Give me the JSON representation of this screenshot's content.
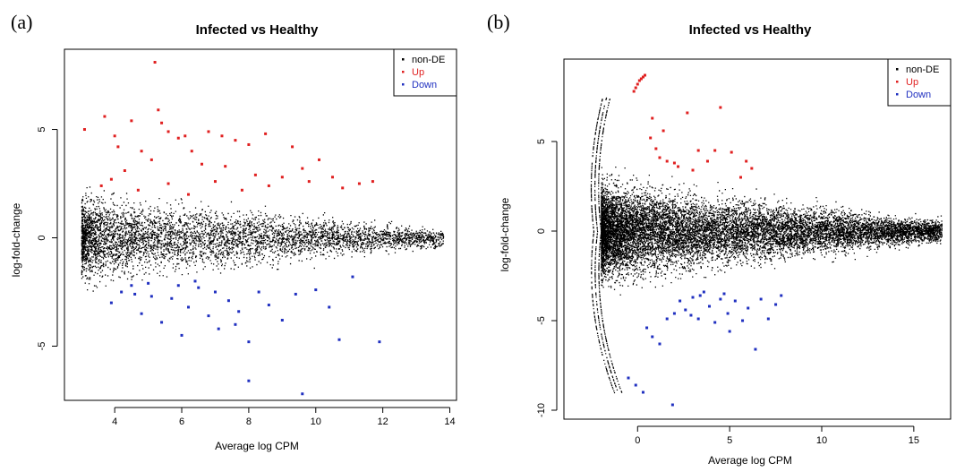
{
  "chart_data": [
    {
      "panel": "(a)",
      "type": "scatter",
      "title": "Infected vs Healthy",
      "xlabel": "Average log CPM",
      "ylabel": "log-fold-change",
      "xlim": [
        2.5,
        14.2
      ],
      "ylim": [
        -7.5,
        8.7
      ],
      "xticks": [
        4,
        6,
        8,
        10,
        12,
        14
      ],
      "yticks": [
        -5,
        0,
        5
      ],
      "grid": false,
      "legend": {
        "position": "top-right",
        "entries": [
          {
            "label": "non-DE",
            "color": "#000000"
          },
          {
            "label": "Up",
            "color": "#e02020"
          },
          {
            "label": "Down",
            "color": "#2030c0"
          }
        ]
      },
      "non_de_cloud": {
        "x_range": [
          3.0,
          13.8
        ],
        "y_center": 0,
        "y_spread": 2.2,
        "n": 5000
      },
      "series": [
        {
          "name": "Up",
          "color": "#e02020",
          "points": [
            [
              3.1,
              5.0
            ],
            [
              3.7,
              5.6
            ],
            [
              4.0,
              4.7
            ],
            [
              4.1,
              4.2
            ],
            [
              4.5,
              5.4
            ],
            [
              4.8,
              4.0
            ],
            [
              5.2,
              8.1
            ],
            [
              5.3,
              5.9
            ],
            [
              5.4,
              5.3
            ],
            [
              5.6,
              4.9
            ],
            [
              5.9,
              4.6
            ],
            [
              6.1,
              4.7
            ],
            [
              6.3,
              4.0
            ],
            [
              6.8,
              4.9
            ],
            [
              7.2,
              4.7
            ],
            [
              7.6,
              4.5
            ],
            [
              8.0,
              4.3
            ],
            [
              8.5,
              4.8
            ],
            [
              9.3,
              4.2
            ],
            [
              9.6,
              3.2
            ],
            [
              10.1,
              3.6
            ],
            [
              10.5,
              2.8
            ],
            [
              10.8,
              2.3
            ],
            [
              11.3,
              2.5
            ],
            [
              11.7,
              2.6
            ],
            [
              3.6,
              2.4
            ],
            [
              3.9,
              2.7
            ],
            [
              4.3,
              3.1
            ],
            [
              4.7,
              2.2
            ],
            [
              5.1,
              3.6
            ],
            [
              5.6,
              2.5
            ],
            [
              6.2,
              2.0
            ],
            [
              6.6,
              3.4
            ],
            [
              7.0,
              2.6
            ],
            [
              7.3,
              3.3
            ],
            [
              7.8,
              2.2
            ],
            [
              8.2,
              2.9
            ],
            [
              8.6,
              2.4
            ],
            [
              9.0,
              2.8
            ],
            [
              9.8,
              2.6
            ]
          ]
        },
        {
          "name": "Down",
          "color": "#2030c0",
          "points": [
            [
              3.9,
              -3.0
            ],
            [
              4.2,
              -2.5
            ],
            [
              4.5,
              -2.2
            ],
            [
              4.8,
              -3.5
            ],
            [
              5.1,
              -2.7
            ],
            [
              5.4,
              -3.9
            ],
            [
              5.7,
              -2.8
            ],
            [
              6.0,
              -4.5
            ],
            [
              6.2,
              -3.2
            ],
            [
              6.5,
              -2.3
            ],
            [
              6.8,
              -3.6
            ],
            [
              7.1,
              -4.2
            ],
            [
              7.4,
              -2.9
            ],
            [
              7.7,
              -3.4
            ],
            [
              8.0,
              -4.8
            ],
            [
              8.3,
              -2.5
            ],
            [
              8.6,
              -3.1
            ],
            [
              9.0,
              -3.8
            ],
            [
              9.4,
              -2.6
            ],
            [
              10.0,
              -2.4
            ],
            [
              10.4,
              -3.2
            ],
            [
              10.7,
              -4.7
            ],
            [
              11.1,
              -1.8
            ],
            [
              11.9,
              -4.8
            ],
            [
              8.0,
              -6.6
            ],
            [
              9.6,
              -7.2
            ],
            [
              7.6,
              -4.0
            ],
            [
              6.4,
              -2.0
            ],
            [
              5.0,
              -2.1
            ],
            [
              4.6,
              -2.6
            ],
            [
              5.9,
              -2.2
            ],
            [
              7.0,
              -2.5
            ]
          ]
        }
      ]
    },
    {
      "panel": "(b)",
      "type": "scatter",
      "title": "Infected vs Healthy",
      "xlabel": "Average log CPM",
      "ylabel": "log-fold-change",
      "xlim": [
        -4.0,
        17.0
      ],
      "ylim": [
        -10.5,
        9.6
      ],
      "xticks": [
        0,
        5,
        10,
        15
      ],
      "yticks": [
        -10,
        -5,
        0,
        5
      ],
      "grid": false,
      "legend": {
        "position": "top-right",
        "entries": [
          {
            "label": "non-DE",
            "color": "#000000"
          },
          {
            "label": "Up",
            "color": "#e02020"
          },
          {
            "label": "Down",
            "color": "#2030c0"
          }
        ]
      },
      "non_de_cloud": {
        "x_range": [
          -2.0,
          16.5
        ],
        "y_center": 0,
        "y_spread": 3.0,
        "n": 12000
      },
      "series": [
        {
          "name": "Up",
          "color": "#e02020",
          "points": [
            [
              -0.2,
              7.8
            ],
            [
              -0.1,
              8.0
            ],
            [
              0.0,
              8.2
            ],
            [
              0.1,
              8.4
            ],
            [
              0.2,
              8.5
            ],
            [
              0.3,
              8.6
            ],
            [
              0.4,
              8.7
            ],
            [
              0.7,
              5.2
            ],
            [
              0.8,
              6.3
            ],
            [
              1.0,
              4.6
            ],
            [
              1.4,
              5.6
            ],
            [
              1.6,
              3.9
            ],
            [
              2.0,
              3.8
            ],
            [
              2.7,
              6.6
            ],
            [
              3.0,
              3.4
            ],
            [
              3.3,
              4.5
            ],
            [
              3.8,
              3.9
            ],
            [
              4.2,
              4.5
            ],
            [
              4.5,
              6.9
            ],
            [
              5.1,
              4.4
            ],
            [
              5.6,
              3.0
            ],
            [
              5.9,
              3.9
            ],
            [
              6.2,
              3.5
            ],
            [
              1.2,
              4.1
            ],
            [
              2.2,
              3.6
            ]
          ]
        },
        {
          "name": "Down",
          "color": "#2030c0",
          "points": [
            [
              0.5,
              -5.4
            ],
            [
              0.8,
              -5.9
            ],
            [
              1.2,
              -6.3
            ],
            [
              1.6,
              -4.9
            ],
            [
              2.0,
              -4.6
            ],
            [
              2.3,
              -3.9
            ],
            [
              2.6,
              -4.4
            ],
            [
              3.0,
              -3.7
            ],
            [
              3.3,
              -4.9
            ],
            [
              3.6,
              -3.4
            ],
            [
              3.9,
              -4.2
            ],
            [
              4.2,
              -5.1
            ],
            [
              4.5,
              -3.8
            ],
            [
              4.9,
              -4.6
            ],
            [
              5.3,
              -3.9
            ],
            [
              5.7,
              -5.0
            ],
            [
              6.0,
              -4.3
            ],
            [
              6.4,
              -6.6
            ],
            [
              6.7,
              -3.8
            ],
            [
              7.1,
              -4.9
            ],
            [
              7.5,
              -4.1
            ],
            [
              7.8,
              -3.6
            ],
            [
              -0.5,
              -8.2
            ],
            [
              -0.1,
              -8.6
            ],
            [
              0.3,
              -9.0
            ],
            [
              1.9,
              -9.7
            ],
            [
              3.4,
              -3.6
            ],
            [
              2.9,
              -4.7
            ],
            [
              4.7,
              -3.5
            ],
            [
              5.0,
              -5.6
            ]
          ]
        }
      ]
    }
  ]
}
